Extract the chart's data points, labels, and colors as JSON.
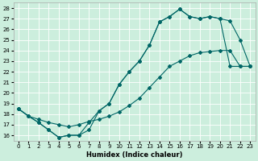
{
  "xlabel": "Humidex (Indice chaleur)",
  "bg_color": "#cceedd",
  "line_color": "#006666",
  "xlim": [
    -0.5,
    23.5
  ],
  "ylim": [
    15.5,
    28.5
  ],
  "yticks": [
    16,
    17,
    18,
    19,
    20,
    21,
    22,
    23,
    24,
    25,
    26,
    27,
    28
  ],
  "xticks": [
    0,
    1,
    2,
    3,
    4,
    5,
    6,
    7,
    8,
    9,
    10,
    11,
    12,
    13,
    14,
    15,
    16,
    17,
    18,
    19,
    20,
    21,
    22,
    23
  ],
  "line1_x": [
    0,
    1,
    2,
    3,
    4,
    5,
    6,
    7,
    8,
    9,
    10,
    11,
    12,
    13,
    14,
    15,
    16,
    17,
    18,
    19,
    20,
    21,
    22,
    23
  ],
  "line1_y": [
    18.5,
    17.8,
    17.2,
    16.5,
    15.8,
    16.0,
    16.0,
    16.5,
    18.3,
    19.0,
    20.8,
    22.0,
    23.0,
    24.5,
    26.7,
    27.2,
    27.9,
    27.2,
    27.0,
    27.2,
    27.0,
    26.8,
    25.0,
    22.5
  ],
  "line2_x": [
    0,
    1,
    2,
    3,
    4,
    5,
    6,
    7,
    8,
    9,
    10,
    11,
    12,
    13,
    14,
    15,
    16,
    17,
    18,
    19,
    20,
    21,
    22,
    23
  ],
  "line2_y": [
    18.5,
    17.8,
    17.2,
    16.5,
    15.8,
    16.0,
    16.0,
    17.2,
    18.3,
    19.0,
    20.8,
    22.0,
    23.0,
    24.5,
    26.7,
    27.2,
    27.9,
    27.2,
    27.0,
    27.2,
    27.0,
    22.5,
    22.5,
    22.5
  ],
  "line3_x": [
    0,
    1,
    2,
    3,
    4,
    5,
    6,
    7,
    8,
    9,
    10,
    11,
    12,
    13,
    14,
    15,
    16,
    17,
    18,
    19,
    20,
    21,
    22,
    23
  ],
  "line3_y": [
    18.5,
    17.8,
    17.5,
    17.2,
    17.0,
    16.8,
    17.0,
    17.3,
    17.5,
    17.8,
    18.2,
    18.8,
    19.5,
    20.5,
    21.5,
    22.5,
    23.0,
    23.5,
    23.8,
    23.9,
    24.0,
    24.0,
    22.5,
    22.5
  ]
}
